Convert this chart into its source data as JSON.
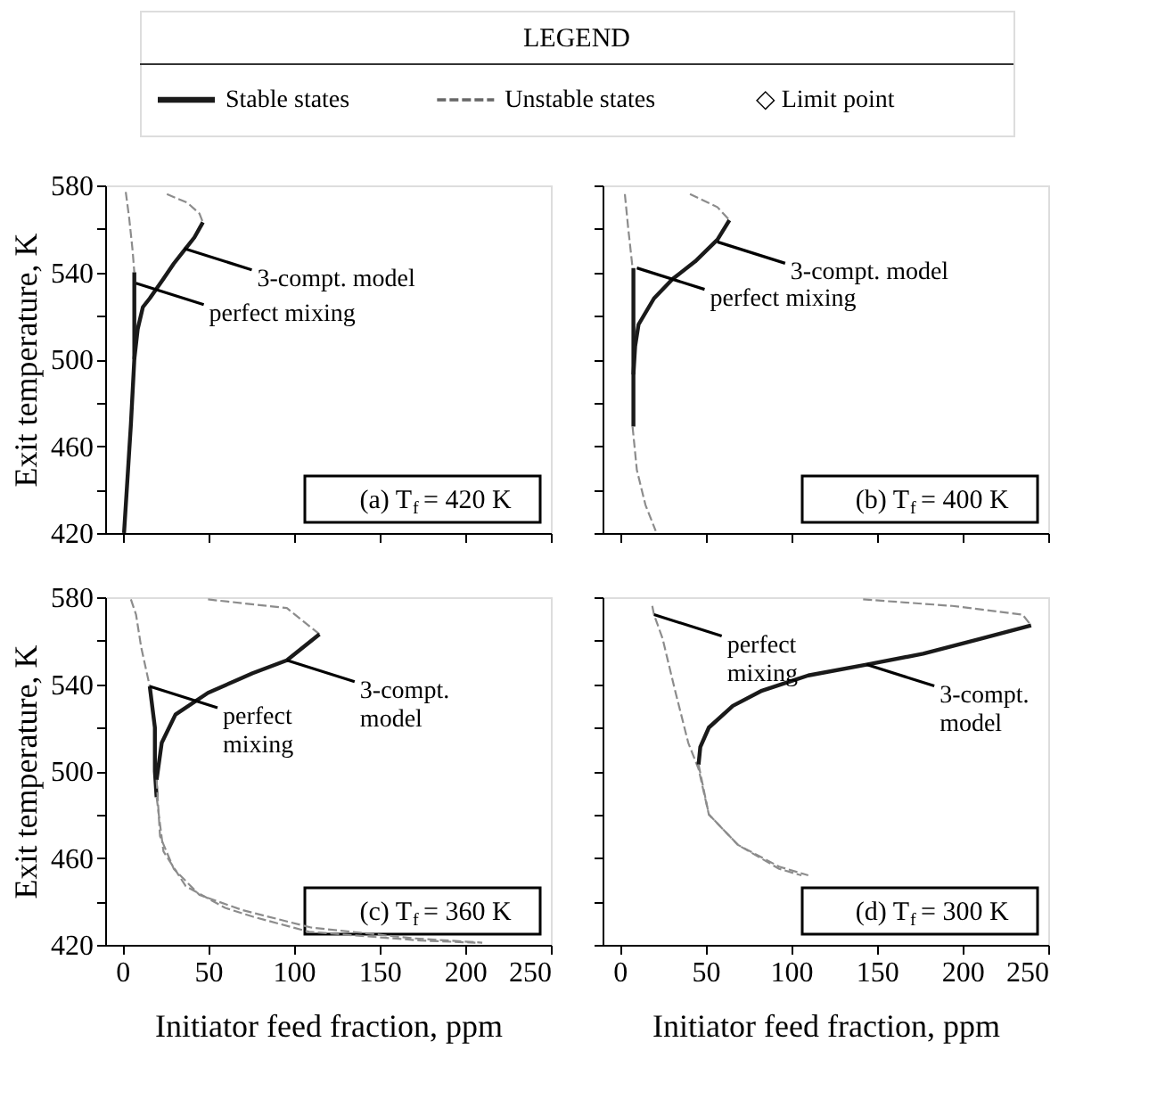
{
  "chart_data": [
    {
      "type": "other",
      "title": "LEGEND",
      "annotations": [
        "Stable states",
        "Unstable states",
        "◇ Limit point"
      ]
    },
    {
      "type": "line",
      "title": "(a)  T$_{f}$ = 420 K",
      "ylabel": "Exit temperature, K",
      "xlim": [
        -10,
        250
      ],
      "ylim": [
        420,
        580
      ],
      "xticks": [
        {
          "value": 0,
          "label": null
        },
        {
          "value": 50,
          "label": null
        },
        {
          "value": 100,
          "label": null
        },
        {
          "value": 150,
          "label": null
        },
        {
          "value": 200,
          "label": null
        },
        {
          "value": 250,
          "label": null
        }
      ],
      "yticks": [
        420,
        {
          "value": 440,
          "label": null
        },
        460,
        {
          "value": 480,
          "label": null
        },
        500,
        {
          "value": 520,
          "label": null
        },
        540,
        {
          "value": 560,
          "label": null
        },
        580
      ],
      "tick_labels": "y",
      "grid": false,
      "series": [
        {
          "color": "#8c8c8c",
          "line_style": "dashed",
          "x": [
            2,
            4,
            6,
            7
          ],
          "values": [
            577,
            565,
            550,
            540
          ]
        },
        {
          "color": "#1a1a1a",
          "line_style": "solid",
          "x": [
            7,
            7,
            7,
            5,
            3,
            1
          ],
          "values": [
            540,
            520,
            500,
            470,
            445,
            420
          ]
        },
        {
          "color": "#8c8c8c",
          "line_style": "dashed",
          "x": [
            26,
            38,
            45,
            47
          ],
          "values": [
            576,
            572,
            567,
            563
          ]
        },
        {
          "color": "#1a1a1a",
          "line_style": "solid",
          "x": [
            47,
            42,
            37,
            30,
            24,
            16,
            12,
            9,
            7
          ],
          "values": [
            563,
            556,
            551,
            544,
            537,
            528,
            524,
            514,
            500
          ]
        }
      ],
      "annotations": [
        {
          "text": "3-compt. model",
          "x": 36,
          "y": 551
        },
        {
          "text": "perfect mixing",
          "x": 8,
          "y": 535
        }
      ]
    },
    {
      "type": "line",
      "title": "(b)  T$_{f}$ = 400 K",
      "xlim": [
        -10,
        250
      ],
      "ylim": [
        420,
        580
      ],
      "xticks": [
        {
          "value": 0,
          "label": null
        },
        {
          "value": 50,
          "label": null
        },
        {
          "value": 100,
          "label": null
        },
        {
          "value": 150,
          "label": null
        },
        {
          "value": 200,
          "label": null
        },
        {
          "value": 250,
          "label": null
        }
      ],
      "yticks": [
        {
          "value": 420,
          "label": null
        },
        {
          "value": 440,
          "label": null
        },
        {
          "value": 460,
          "label": null
        },
        {
          "value": 480,
          "label": null
        },
        {
          "value": 500,
          "label": null
        },
        {
          "value": 520,
          "label": null
        },
        {
          "value": 540,
          "label": null
        },
        {
          "value": 560,
          "label": null
        },
        {
          "value": 580,
          "label": null
        }
      ],
      "tick_labels": false,
      "grid": false,
      "series": [
        {
          "color": "#8c8c8c",
          "line_style": "dashed",
          "x": [
            3,
            5,
            7.5
          ],
          "values": [
            576,
            560,
            542
          ]
        },
        {
          "color": "#1a1a1a",
          "line_style": "solid",
          "x": [
            8,
            8,
            8
          ],
          "values": [
            542,
            500,
            469
          ]
        },
        {
          "color": "#8c8c8c",
          "line_style": "dashed",
          "x": [
            7.5,
            10,
            15,
            21
          ],
          "values": [
            469,
            449,
            433,
            421
          ]
        },
        {
          "color": "#8c8c8c",
          "line_style": "dashed",
          "x": [
            41,
            57,
            64
          ],
          "values": [
            576,
            570,
            564
          ]
        },
        {
          "color": "#1a1a1a",
          "line_style": "solid",
          "x": [
            64,
            57,
            44,
            31,
            20,
            11,
            9,
            8
          ],
          "values": [
            564,
            555,
            545,
            537,
            528,
            516,
            506,
            493
          ]
        }
      ],
      "annotations": [
        {
          "text": "3-compt. model",
          "x": 57,
          "y": 554
        },
        {
          "text": "perfect mixing",
          "x": 10,
          "y": 542
        }
      ]
    },
    {
      "type": "line",
      "title": "(c)  T$_{f}$ = 360 K",
      "xlabel": "Initiator feed fraction, ppm",
      "ylabel": "Exit temperature, K",
      "xlim": [
        -10,
        250
      ],
      "ylim": [
        420,
        580
      ],
      "xticks": [
        0,
        50,
        100,
        150,
        200,
        250
      ],
      "yticks": [
        420,
        {
          "value": 440,
          "label": null
        },
        460,
        {
          "value": 480,
          "label": null
        },
        500,
        {
          "value": 520,
          "label": null
        },
        540,
        {
          "value": 560,
          "label": null
        },
        580
      ],
      "grid": false,
      "series": [
        {
          "color": "#8c8c8c",
          "line_style": "dashed",
          "x": [
            5,
            8,
            11,
            16
          ],
          "values": [
            579,
            572,
            557,
            539
          ]
        },
        {
          "color": "#1a1a1a",
          "line_style": "solid",
          "x": [
            16,
            19,
            19,
            20
          ],
          "values": [
            539,
            520,
            500,
            488
          ]
        },
        {
          "color": "#8c8c8c",
          "line_style": "dashed",
          "x": [
            20,
            24,
            37,
            60,
            76,
            109,
            174,
            206
          ],
          "values": [
            488,
            463,
            447,
            437,
            433,
            426,
            422,
            421
          ]
        },
        {
          "color": "#8c8c8c",
          "line_style": "dashed",
          "x": [
            50,
            96,
            115
          ],
          "values": [
            579,
            575,
            563
          ]
        },
        {
          "color": "#1a1a1a",
          "line_style": "solid",
          "x": [
            115,
            96,
            76,
            50,
            31,
            23,
            20
          ],
          "values": [
            563,
            551,
            545,
            536,
            526,
            513,
            496
          ]
        },
        {
          "color": "#8c8c8c",
          "line_style": "dashed",
          "x": [
            20,
            22,
            30,
            45,
            70,
            110,
            170,
            210
          ],
          "values": [
            496,
            470,
            455,
            443,
            436,
            428,
            423,
            421
          ]
        }
      ],
      "annotations": [
        {
          "text": "3-compt.\nmodel",
          "x": 96,
          "y": 551
        },
        {
          "text": "perfect\nmixing",
          "x": 16,
          "y": 539
        }
      ]
    },
    {
      "type": "line",
      "title": "(d)  T$_{f}$ = 300 K",
      "xlabel": "Initiator feed fraction, ppm",
      "xlim": [
        -10,
        250
      ],
      "ylim": [
        420,
        580
      ],
      "xticks": [
        0,
        50,
        100,
        150,
        200,
        250
      ],
      "yticks": [
        {
          "value": 420,
          "label": null
        },
        {
          "value": 440,
          "label": null
        },
        {
          "value": 460,
          "label": null
        },
        {
          "value": 480,
          "label": null
        },
        {
          "value": 500,
          "label": null
        },
        {
          "value": 520,
          "label": null
        },
        {
          "value": 540,
          "label": null
        },
        {
          "value": 560,
          "label": null
        },
        {
          "value": 580,
          "label": null
        }
      ],
      "tick_labels": "x",
      "grid": false,
      "series": [
        {
          "color": "#8c8c8c",
          "line_style": "dashed",
          "x": [
            19,
            20,
            25,
            32,
            40,
            46,
            52,
            69,
            93,
            106
          ],
          "values": [
            576,
            572,
            561,
            538,
            513,
            501,
            480,
            466,
            455,
            452
          ]
        },
        {
          "color": "#8c8c8c",
          "line_style": "dashed",
          "x": [
            142,
            194,
            235,
            240
          ],
          "values": [
            579,
            576,
            572,
            567
          ]
        },
        {
          "color": "#1a1a1a",
          "line_style": "solid",
          "x": [
            240,
            211,
            177,
            144,
            110,
            83,
            66,
            52,
            47,
            46
          ],
          "values": [
            567,
            561,
            554,
            549,
            544,
            537,
            530,
            520,
            511,
            503
          ]
        },
        {
          "color": "#8c8c8c",
          "line_style": "dashed",
          "x": [
            46,
            52,
            69,
            93,
            110
          ],
          "values": [
            503,
            480,
            466,
            456,
            452
          ]
        }
      ],
      "annotations": [
        {
          "text": "perfect\nmixing",
          "x": 20,
          "y": 572
        },
        {
          "text": "3-compt.\nmodel",
          "x": 144,
          "y": 549
        }
      ]
    }
  ]
}
